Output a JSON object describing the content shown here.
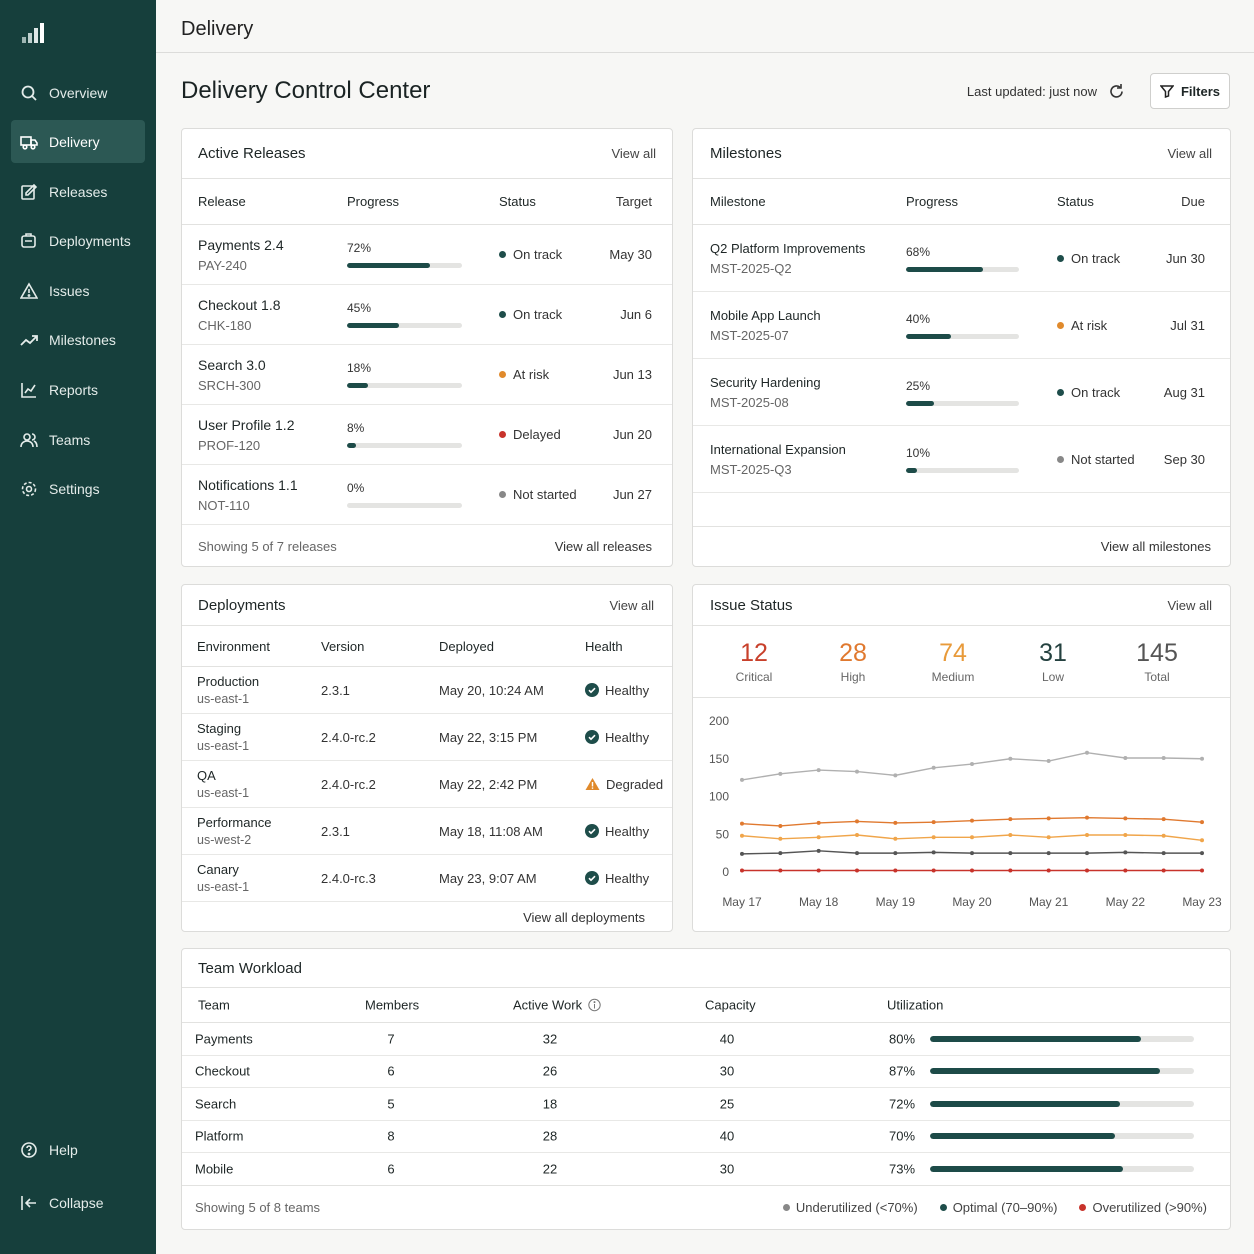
{
  "sidebar": {
    "nav": [
      "Overview",
      "Delivery",
      "Releases",
      "Deployments",
      "Issues",
      "Milestones",
      "Reports",
      "Teams",
      "Settings"
    ],
    "footer": [
      "Help",
      "Collapse"
    ]
  },
  "header": {
    "title": "Delivery"
  },
  "page": {
    "title": "Delivery Control Center",
    "last_updated": "Last updated: just now",
    "filters": "Filters"
  },
  "releases": {
    "title": "Active Releases",
    "view_all": "View all",
    "columns": [
      "Release",
      "Progress",
      "Status",
      "Target"
    ],
    "rows": [
      {
        "name": "Payments 2.4",
        "code": "PAY-240",
        "progress": 72,
        "progress_label": "72%",
        "status": "On track",
        "target": "May 30"
      },
      {
        "name": "Checkout 1.8",
        "code": "CHK-180",
        "progress": 45,
        "progress_label": "45%",
        "status": "On track",
        "target": "Jun 6"
      },
      {
        "name": "Search 3.0",
        "code": "SRCH-300",
        "progress": 18,
        "progress_label": "18%",
        "status": "At risk",
        "target": "Jun 13"
      },
      {
        "name": "User Profile 1.2",
        "code": "PROF-120",
        "progress": 8,
        "progress_label": "8%",
        "status": "Delayed",
        "target": "Jun 20"
      },
      {
        "name": "Notifications 1.1",
        "code": "NOT-110",
        "progress": 0,
        "progress_label": "0%",
        "status": "Not started",
        "target": "Jun 27"
      }
    ],
    "footer": "Showing 5 of 7 releases",
    "footer_link": "View all releases"
  },
  "milestones": {
    "title": "Milestones",
    "view_all": "View all",
    "columns": [
      "Milestone",
      "Progress",
      "Status",
      "Due"
    ],
    "rows": [
      {
        "name": "Q2 Platform Improvements",
        "code": "MST-2025-Q2",
        "progress": 68,
        "progress_label": "68%",
        "status": "On track",
        "due": "Jun 30"
      },
      {
        "name": "Mobile App Launch",
        "code": "MST-2025-07",
        "progress": 40,
        "progress_label": "40%",
        "status": "At risk",
        "due": "Jul 31"
      },
      {
        "name": "Security Hardening",
        "code": "MST-2025-08",
        "progress": 25,
        "progress_label": "25%",
        "status": "On track",
        "due": "Aug 31"
      },
      {
        "name": "International Expansion",
        "code": "MST-2025-Q3",
        "progress": 10,
        "progress_label": "10%",
        "status": "Not started",
        "due": "Sep 30"
      }
    ],
    "footer_link": "View all milestones"
  },
  "deployments": {
    "title": "Deployments",
    "view_all": "View all",
    "columns": [
      "Environment",
      "Version",
      "Deployed",
      "Health"
    ],
    "rows": [
      {
        "env": "Production",
        "region": "us-east-1",
        "version": "2.3.1",
        "deployed": "May 20, 10:24 AM",
        "health": "Healthy"
      },
      {
        "env": "Staging",
        "region": "us-east-1",
        "version": "2.4.0-rc.2",
        "deployed": "May 22, 3:15 PM",
        "health": "Healthy"
      },
      {
        "env": "QA",
        "region": "us-east-1",
        "version": "2.4.0-rc.2",
        "deployed": "May 22, 2:42 PM",
        "health": "Degraded"
      },
      {
        "env": "Performance",
        "region": "us-west-2",
        "version": "2.3.1",
        "deployed": "May 18, 11:08 AM",
        "health": "Healthy"
      },
      {
        "env": "Canary",
        "region": "us-east-1",
        "version": "2.4.0-rc.3",
        "deployed": "May 23, 9:07 AM",
        "health": "Healthy"
      }
    ],
    "footer_link": "View all deployments"
  },
  "issues": {
    "title": "Issue Status",
    "view_all": "View all",
    "stats": [
      {
        "value": 12,
        "label": "Critical"
      },
      {
        "value": 28,
        "label": "High"
      },
      {
        "value": 74,
        "label": "Medium"
      },
      {
        "value": 31,
        "label": "Low"
      },
      {
        "value": 145,
        "label": "Total"
      }
    ]
  },
  "chart_data": {
    "type": "line",
    "categories": [
      "May 17",
      null,
      "May 18",
      null,
      "May 19",
      null,
      "May 20",
      null,
      "May 21",
      null,
      "May 22",
      null,
      "May 23"
    ],
    "series": [
      {
        "color": "#b0b0b0",
        "values": [
          122,
          130,
          135,
          133,
          128,
          138,
          143,
          150,
          147,
          158,
          151,
          151,
          150
        ]
      },
      {
        "color": "#e0792f",
        "values": [
          64,
          61,
          65,
          67,
          65,
          66,
          68,
          70,
          71,
          72,
          71,
          70,
          66
        ]
      },
      {
        "color": "#f0a54a",
        "values": [
          48,
          44,
          46,
          49,
          44,
          46,
          46,
          49,
          46,
          49,
          49,
          48,
          42
        ]
      },
      {
        "color": "#555555",
        "values": [
          24,
          25,
          28,
          25,
          25,
          26,
          25,
          25,
          25,
          25,
          26,
          25,
          25
        ]
      },
      {
        "color": "#c8332b",
        "values": [
          2,
          2,
          2,
          2,
          2,
          2,
          2,
          2,
          2,
          2,
          2,
          2,
          2
        ]
      }
    ],
    "ylim": [
      0,
      200
    ],
    "yticks": [
      0,
      50,
      100,
      150,
      200
    ]
  },
  "team": {
    "title": "Team Workload",
    "columns": [
      "Team",
      "Members",
      "Active Work",
      "Capacity",
      "Utilization"
    ],
    "rows": [
      {
        "team": "Payments",
        "members": 7,
        "active": 32,
        "capacity": 40,
        "utilization": 80,
        "utilization_label": "80%"
      },
      {
        "team": "Checkout",
        "members": 6,
        "active": 26,
        "capacity": 30,
        "utilization": 87,
        "utilization_label": "87%"
      },
      {
        "team": "Search",
        "members": 5,
        "active": 18,
        "capacity": 25,
        "utilization": 72,
        "utilization_label": "72%"
      },
      {
        "team": "Platform",
        "members": 8,
        "active": 28,
        "capacity": 40,
        "utilization": 70,
        "utilization_label": "70%"
      },
      {
        "team": "Mobile",
        "members": 6,
        "active": 22,
        "capacity": 30,
        "utilization": 73,
        "utilization_label": "73%"
      }
    ],
    "footer": "Showing 5 of 8 teams",
    "legend": [
      "Underutilized (<70%)",
      "Optimal (70–90%)",
      "Overutilized (>90%)"
    ]
  }
}
